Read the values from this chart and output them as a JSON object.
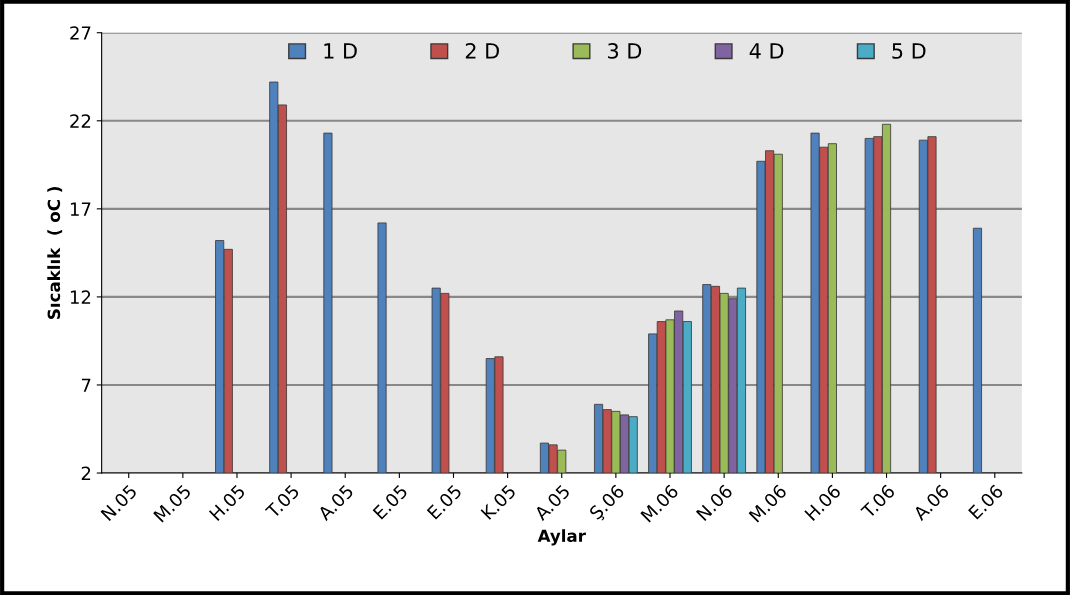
{
  "chart_data": {
    "type": "bar",
    "xlabel": "Aylar",
    "ylabel": "Sıcaklık  ( oC )",
    "categories": [
      "N.05",
      "M.05",
      "H.05",
      "T.05",
      "A.05",
      "E.05",
      "E.05",
      "K.05",
      "A.05",
      "Ş.06",
      "M.06",
      "N.06",
      "M.06",
      "H.06",
      "T.06",
      "A.06",
      "E.06"
    ],
    "series": [
      {
        "name": "1 D",
        "color": "#4f81bd",
        "values": [
          null,
          null,
          15.2,
          24.2,
          21.3,
          16.2,
          12.5,
          8.5,
          3.7,
          5.9,
          9.9,
          12.7,
          19.7,
          21.3,
          21.0,
          20.9,
          15.9
        ]
      },
      {
        "name": "2 D",
        "color": "#c0504d",
        "values": [
          null,
          null,
          14.7,
          22.9,
          null,
          null,
          12.2,
          8.6,
          3.6,
          5.6,
          10.6,
          12.6,
          20.3,
          20.5,
          21.1,
          21.1,
          null
        ]
      },
      {
        "name": "3 D",
        "color": "#9bbb59",
        "values": [
          null,
          null,
          null,
          null,
          null,
          null,
          null,
          null,
          3.3,
          5.5,
          10.7,
          12.2,
          20.1,
          20.7,
          21.8,
          null,
          null
        ]
      },
      {
        "name": "4 D",
        "color": "#8064a2",
        "values": [
          null,
          null,
          null,
          null,
          null,
          null,
          null,
          null,
          null,
          5.3,
          11.2,
          11.9,
          null,
          null,
          null,
          null,
          null
        ]
      },
      {
        "name": "5 D",
        "color": "#4bacc6",
        "values": [
          null,
          null,
          null,
          null,
          null,
          null,
          null,
          null,
          null,
          5.2,
          10.6,
          12.5,
          null,
          null,
          null,
          null,
          null
        ]
      }
    ],
    "ylim": [
      2,
      27
    ],
    "yticks": [
      2,
      7,
      12,
      17,
      22,
      27
    ],
    "grid": "y",
    "legend": "top"
  }
}
